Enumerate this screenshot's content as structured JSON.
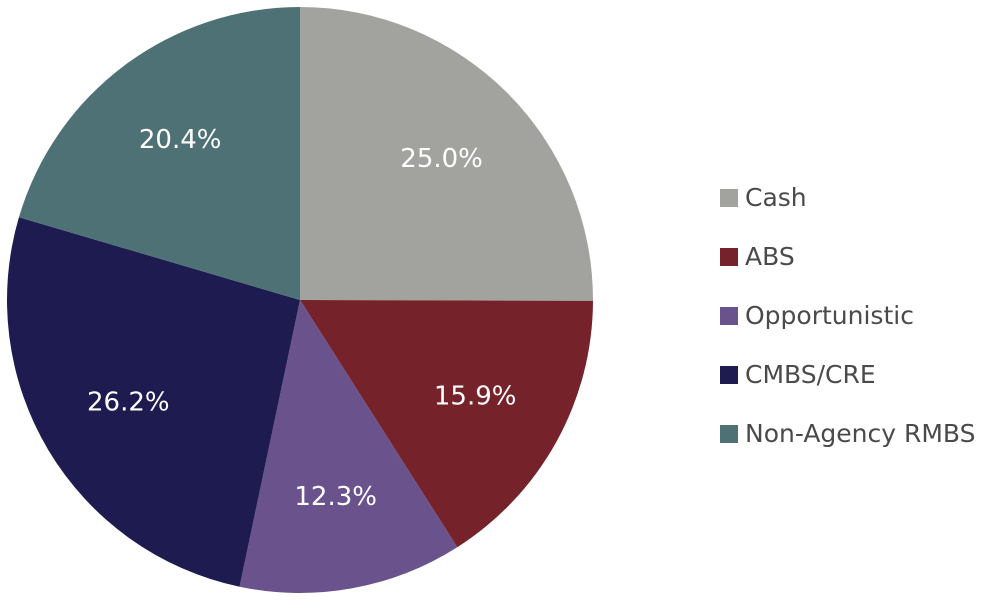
{
  "chart_data": {
    "type": "pie",
    "categories": [
      "Cash",
      "ABS",
      "Opportunistic",
      "CMBS/CRE",
      "Non-Agency RMBS"
    ],
    "values": [
      25.0,
      15.9,
      12.3,
      26.2,
      20.4
    ],
    "data_labels": [
      "25.0%",
      "15.9%",
      "12.3%",
      "26.2%",
      "20.4%"
    ],
    "colors": [
      "#a2a39e",
      "#75222a",
      "#6a538c",
      "#1d1b4f",
      "#4e7175"
    ],
    "start_angle_deg": 0,
    "direction": "clockwise",
    "legend_position": "right",
    "title": ""
  }
}
